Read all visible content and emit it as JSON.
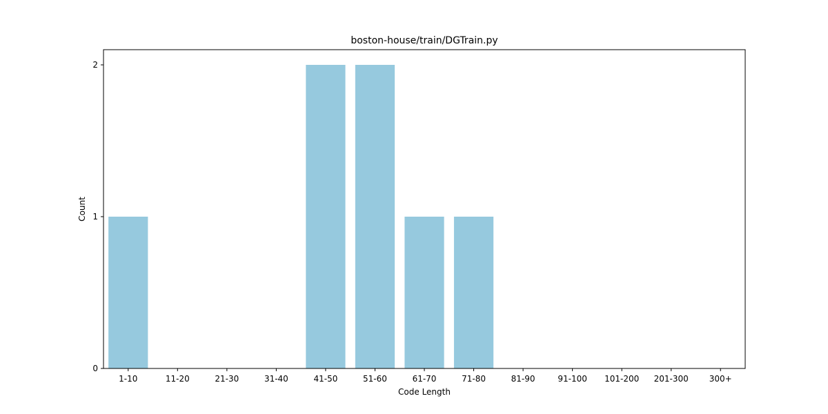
{
  "chart_data": {
    "type": "bar",
    "title": "boston-house/train/DGTrain.py",
    "xlabel": "Code Length",
    "ylabel": "Count",
    "categories": [
      "1-10",
      "11-20",
      "21-30",
      "31-40",
      "41-50",
      "51-60",
      "61-70",
      "71-80",
      "81-90",
      "91-100",
      "101-200",
      "201-300",
      "300+"
    ],
    "values": [
      1,
      0,
      0,
      0,
      2,
      2,
      1,
      1,
      0,
      0,
      0,
      0,
      0
    ],
    "ylim": [
      0,
      2
    ],
    "yticks": [
      "0",
      "1",
      "2"
    ],
    "grid": false,
    "bar_color": "#96c9de"
  }
}
